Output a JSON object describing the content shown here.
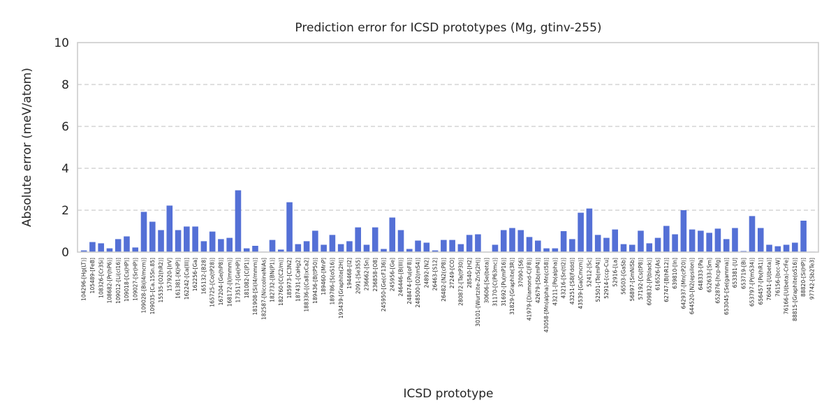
{
  "chart_data": {
    "type": "bar",
    "title": "Prediction error for ICSD prototypes (Mg, gtinv-255)",
    "xlabel": "ICSD prototype",
    "ylabel": "Absolute error (meV/atom)",
    "ylim": [
      0,
      10
    ],
    "yticks": [
      "0",
      "2",
      "4",
      "6",
      "8",
      "10"
    ],
    "grid": "horizontal dashed",
    "bar_color": "#5470d6",
    "categories": [
      "104296-[Hg(LT)]",
      "105489-[FeB]",
      "108326-[Cr3Si]",
      "108682-[Pr(hP6)]",
      "109012-[Li(cI16)]",
      "109018-[Cs(HP)]",
      "109027-[Sr(HP)]",
      "109028-[Bi(I4/mcm)]",
      "109035-[Ca.15Sn.85]",
      "15535-[O2(hR2)]",
      "157920-[IrV]",
      "161381-[K(HP)]",
      "162242-[Ca(III)]",
      "162256-[Ga]",
      "165132-[B28]",
      "165725-[Co(tP28)]",
      "167204-[Ge(hP8)]",
      "168172-[I(Immm)]",
      "173517-[Ge(HP)]",
      "181082-[C(P1)]",
      "181908-[Si(I4/mmm)]",
      "182587-[NiccolineNiAs]",
      "182732-[BN(P1)]",
      "182760-[C(C2/m)]",
      "185973-[C3N2]",
      "187431-[CaHg2]",
      "188336-[(Ca8)xCa2]",
      "189436-[B(tP50)]",
      "189460-[MnP]",
      "189786-[S(oS16)]",
      "193439-[Graphite(2H)]",
      "194468-[I2]",
      "2091-[Se3S5]",
      "236662-[Sn]",
      "236858-[O8]",
      "245950-[Ge(cF136)]",
      "245956-[Ge]",
      "246446-[B(III)]",
      "248474-[Pu(oF8)]",
      "248500-[O2(mS4)]",
      "24892-[N2]",
      "26463-[S12]",
      "26482-[N2(cP8)]",
      "27249-[CO]",
      "280872-[Ta(tP30)]",
      "28540-[H2]",
      "30101-[Wurtzite-ZnS(2H)]",
      "30606-[Se(beta)]",
      "31170-[C(P63mc)]",
      "31692-[Pu(mP16)]",
      "31829-[Graphite(3R)]",
      "37090-[S6]",
      "41979-[Diamond-C(F8)]",
      "42679-[Sb(mP4)]",
      "43058-[Mn(alpha)-Mn(cI58)]",
      "43211-[Po(alpha)]",
      "43216-[Sn(tI2)]",
      "43251-[S8(Fddd)]",
      "43539-[Ga(Cmcm)]",
      "52412-[Sc]",
      "52501-[Te(mP4)]",
      "52914-[ccp-Cu]",
      "52916-[La]",
      "56503-[GaSb]",
      "56897-[SmNiSb]",
      "57192-[Cs(tP8)]",
      "609832-[P(black)]",
      "616526-[As]",
      "62747-[B(hR12)]",
      "639810-[In]",
      "642937-[Mn(cP20)]",
      "644520-[N2(epsilon)]",
      "648333-[Pa]",
      "652633-[Sm]",
      "652876-[hcp-Mg]",
      "653045-[Se(gamma)]",
      "653381-[U]",
      "653719-[Bi]",
      "653797-[P(mS34)]",
      "656457-[Po(hR1)]",
      "76041-[U(beta)]",
      "76156-[bcc-W]",
      "76166-[U(beta)-CrFe]",
      "88815-[Graphite(oS16)]",
      "88820-[Si(HP)]",
      "97742-[Sb2Te3]"
    ],
    "values": [
      0.08,
      0.48,
      0.42,
      0.18,
      0.62,
      0.75,
      0.22,
      1.92,
      1.45,
      1.05,
      2.22,
      1.05,
      1.22,
      1.22,
      0.52,
      0.98,
      0.62,
      0.68,
      2.95,
      0.18,
      0.3,
      0.02,
      0.58,
      0.12,
      2.38,
      0.38,
      0.52,
      1.02,
      0.35,
      0.82,
      0.38,
      0.52,
      1.18,
      0.35,
      1.18,
      0.15,
      1.65,
      1.05,
      0.15,
      0.55,
      0.45,
      0.08,
      0.58,
      0.58,
      0.38,
      0.82,
      0.85,
      0.02,
      0.35,
      1.05,
      1.15,
      1.05,
      0.72,
      0.55,
      0.18,
      0.18,
      1.0,
      0.62,
      1.88,
      2.08,
      0.82,
      0.68,
      1.08,
      0.38,
      0.35,
      1.02,
      0.42,
      0.68,
      1.25,
      0.85,
      2.0,
      1.08,
      1.02,
      0.92,
      1.12,
      0.62,
      1.15,
      0.05,
      1.72,
      1.15,
      0.35,
      0.28,
      0.35,
      0.45,
      1.5,
      0.02
    ]
  }
}
